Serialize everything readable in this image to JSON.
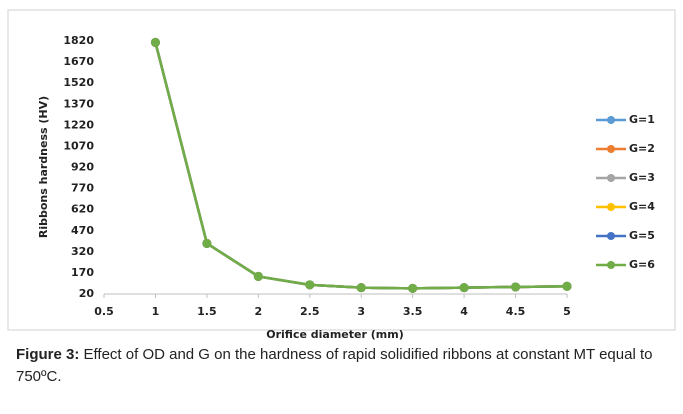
{
  "chart_data": {
    "type": "line",
    "x_label": "Orifice diameter  (mm)",
    "y_label": "Ribbons hardness (HV)",
    "x": [
      1,
      1.5,
      2,
      2.5,
      3,
      3.5,
      4,
      4.5,
      5
    ],
    "series": [
      {
        "name": "G=1",
        "color": "#5b9bd5",
        "values": [
          1810,
          380,
          145,
          85,
          65,
          60,
          65,
          70,
          75
        ]
      },
      {
        "name": "G=2",
        "color": "#ed7d31",
        "values": [
          1810,
          380,
          145,
          85,
          65,
          60,
          65,
          70,
          75
        ]
      },
      {
        "name": "G=3",
        "color": "#a5a5a5",
        "values": [
          1810,
          380,
          145,
          85,
          65,
          60,
          65,
          70,
          75
        ]
      },
      {
        "name": "G=4",
        "color": "#ffc000",
        "values": [
          1810,
          380,
          145,
          85,
          65,
          60,
          65,
          70,
          75
        ]
      },
      {
        "name": "G=5",
        "color": "#4472c4",
        "values": [
          1810,
          380,
          145,
          85,
          65,
          60,
          65,
          70,
          75
        ]
      },
      {
        "name": "G=6",
        "color": "#70ad47",
        "values": [
          1810,
          380,
          145,
          85,
          65,
          60,
          65,
          70,
          75
        ]
      }
    ],
    "xlim": [
      0.5,
      5
    ],
    "xticks": [
      0.5,
      1,
      1.5,
      2,
      2.5,
      3,
      3.5,
      4,
      4.5,
      5
    ],
    "ylim": [
      20,
      1820
    ],
    "yticks": [
      20,
      170,
      320,
      470,
      620,
      770,
      920,
      1070,
      1220,
      1370,
      1520,
      1670,
      1820
    ],
    "legend": "right",
    "grid": false
  },
  "caption": {
    "label": "Figure 3:",
    "text": "Effect of OD and G on the hardness of rapid solidified ribbons at constant MT equal to 750ºC."
  }
}
